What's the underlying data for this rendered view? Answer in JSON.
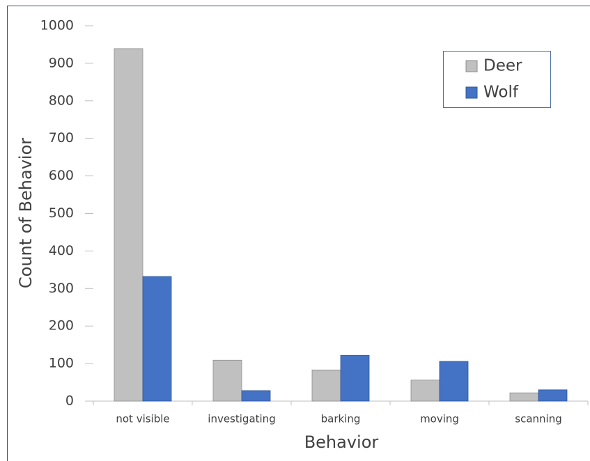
{
  "chart_data": {
    "type": "bar",
    "categories": [
      "not visible",
      "investigating",
      "barking",
      "moving",
      "scanning"
    ],
    "series": [
      {
        "name": "Deer",
        "color": "#c0c0c0",
        "values": [
          939,
          109,
          83,
          56,
          22
        ]
      },
      {
        "name": "Wolf",
        "color": "#4472c4",
        "values": [
          332,
          28,
          122,
          106,
          30
        ]
      }
    ],
    "xlabel": "Behavior",
    "ylabel": "Count of Behavior",
    "ylim": [
      0,
      1000
    ],
    "yticks": [
      0,
      100,
      200,
      300,
      400,
      500,
      600,
      700,
      800,
      900,
      1000
    ],
    "legend": "upper right"
  }
}
